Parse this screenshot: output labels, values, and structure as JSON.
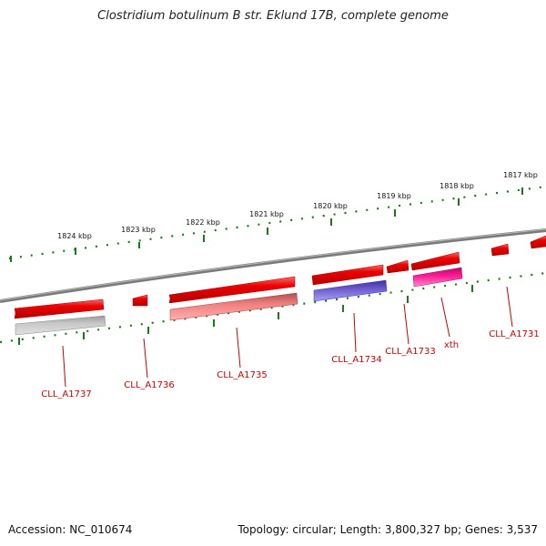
{
  "title": "Clostridium botulinum B str. Eklund 17B, complete genome",
  "footer": {
    "accession": "Accession: NC_010674",
    "summary": "Topology: circular; Length: 3,800,327 bp; Genes: 3,537"
  },
  "colors": {
    "cds": "#ee0000",
    "gene_gray": "#bdbdbd",
    "gene_pink": "#f08080",
    "gene_blue": "#6a5acd",
    "gene_magenta": "#ff1493",
    "tick": "#1a7a1a",
    "label": "#cc0000",
    "backbone": "#808080"
  },
  "ticks": [
    {
      "kbp": 1824,
      "label": "1824 kbp"
    },
    {
      "kbp": 1823,
      "label": "1823 kbp"
    },
    {
      "kbp": 1822,
      "label": "1822 kbp"
    },
    {
      "kbp": 1821,
      "label": "1821 kbp"
    },
    {
      "kbp": 1820,
      "label": "1820 kbp"
    },
    {
      "kbp": 1819,
      "label": "1819 kbp"
    },
    {
      "kbp": 1818,
      "label": "1818 kbp"
    },
    {
      "kbp": 1817,
      "label": "1817 kbp"
    }
  ],
  "genes": [
    {
      "name": "CLL_A1737",
      "color": "#bdbdbd"
    },
    {
      "name": "CLL_A1736",
      "color": "#ee0000"
    },
    {
      "name": "CLL_A1735",
      "color": "#f08080"
    },
    {
      "name": "CLL_A1734",
      "color": "#6a5acd"
    },
    {
      "name": "CLL_A1733",
      "color": "#ee0000"
    },
    {
      "name": "xth",
      "color": "#ff1493"
    },
    {
      "name": "CLL_A1731",
      "color": "#ee0000"
    }
  ]
}
